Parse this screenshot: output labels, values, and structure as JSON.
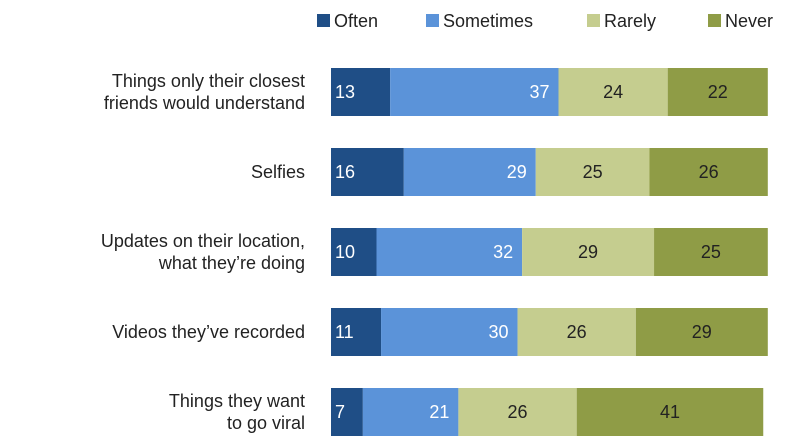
{
  "chart_data": {
    "type": "bar",
    "orientation": "horizontal",
    "stacked": true,
    "legend_position": "top",
    "categories": [
      [
        "Things only their closest",
        "friends would understand"
      ],
      [
        "Selfies"
      ],
      [
        "Updates on their location,",
        "what they’re doing"
      ],
      [
        "Videos they’ve recorded"
      ],
      [
        "Things they want",
        "to go viral"
      ]
    ],
    "series": [
      {
        "name": "Often",
        "color": "#1f4e86",
        "label_color": "#ffffff",
        "values": [
          13,
          16,
          10,
          11,
          7
        ]
      },
      {
        "name": "Sometimes",
        "color": "#5b93d9",
        "label_color": "#ffffff",
        "values": [
          37,
          29,
          32,
          30,
          21
        ]
      },
      {
        "name": "Rarely",
        "color": "#c5cd8f",
        "label_color": "#222222",
        "values": [
          24,
          25,
          29,
          26,
          26
        ]
      },
      {
        "name": "Never",
        "color": "#8f9c46",
        "label_color": "#222222",
        "values": [
          22,
          26,
          25,
          29,
          41
        ]
      }
    ]
  }
}
